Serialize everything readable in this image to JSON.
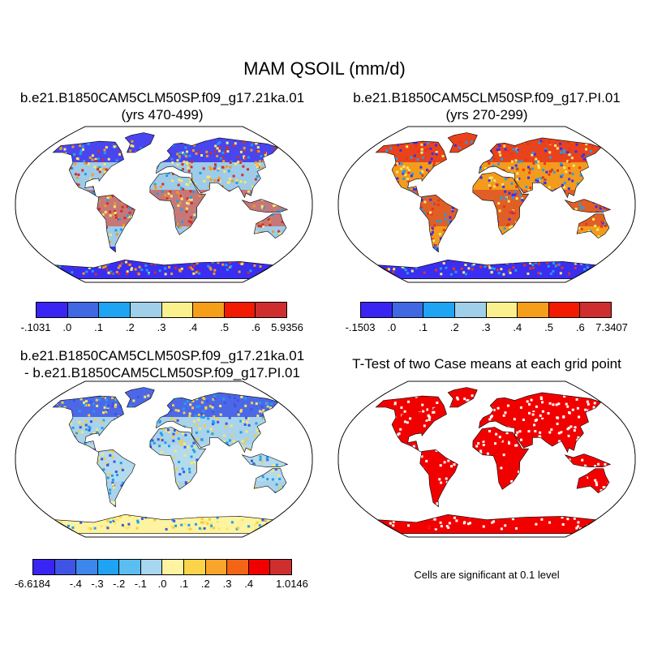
{
  "title": "MAM QSOIL (mm/d)",
  "panels": [
    {
      "title_line1": "b.e21.B1850CAM5CLM50SP.f09_g17.21ka.01",
      "title_line2": "(yrs 470-499)",
      "map": {
        "land": "#9ecbe8",
        "north": "#3a2ef0",
        "south": "#3a2ef0",
        "tropics": "#e8341c",
        "scatter": [
          "#f6e86c",
          "#f39b1c",
          "#1e9ff0",
          "#cf2e2e"
        ]
      }
    },
    {
      "title_line1": "b.e21.B1850CAM5CLM50SP.f09_g17.PI.01",
      "title_line2": "(yrs 270-299)",
      "map": {
        "land": "#f39b1c",
        "north": "#e8341c",
        "south": "#3a2ef0",
        "tropics": "#cf2e2e",
        "scatter": [
          "#f6e86c",
          "#3a2ef0",
          "#1e9ff0",
          "#e8341c"
        ]
      }
    },
    {
      "title_line1": "b.e21.B1850CAM5CLM50SP.f09_g17.21ka.01",
      "title_line2": "- b.e21.B1850CAM5CLM50SP.f09_g17.PI.01",
      "map": {
        "land": "#a9d3ea",
        "north": "#3d55e6",
        "south": "#fdf3a0",
        "tropics": "#bde0f0",
        "scatter": [
          "#f6e86c",
          "#1e9ff0",
          "#f7cb3c",
          "#3d55e6"
        ]
      }
    },
    {
      "title_line1": "T-Test of two Case means at each grid point",
      "note": "Cells are significant at 0.1 level",
      "map": {
        "land": "#f20000",
        "north": "#f20000",
        "south": "#f20000",
        "tropics": "#f20000",
        "scatter": [
          "#ffffff",
          "#f20000"
        ]
      }
    }
  ],
  "colorbars": [
    {
      "colors": [
        "#3a24f4",
        "#4068e2",
        "#1ea4f2",
        "#a0cfe9",
        "#fbf08e",
        "#f59e1a",
        "#f21a00",
        "#cf2e2e"
      ],
      "labels": [
        "-.1031",
        ".0",
        ".1",
        ".2",
        ".3",
        ".4",
        ".5",
        ".6",
        "5.9356"
      ]
    },
    {
      "colors": [
        "#3a24f4",
        "#4068e2",
        "#1ea4f2",
        "#a0cfe9",
        "#fbf08e",
        "#f59e1a",
        "#f21a00",
        "#cf2e2e"
      ],
      "labels": [
        "-.1503",
        ".0",
        ".1",
        ".2",
        ".3",
        ".4",
        ".5",
        ".6",
        "7.3407"
      ]
    },
    {
      "colors": [
        "#3a24f4",
        "#3f54e4",
        "#3d86ec",
        "#1ea4f2",
        "#5cbdf0",
        "#a8d6ee",
        "#fdf3a0",
        "#fbd449",
        "#f9a52c",
        "#f36515",
        "#f20000",
        "#cf2e2e"
      ],
      "labels": [
        "-6.6184",
        "",
        "-.4",
        "-.3",
        "-.2",
        "-.1",
        ".0",
        ".1",
        ".2",
        ".3",
        ".4",
        "",
        "1.0146"
      ]
    }
  ]
}
